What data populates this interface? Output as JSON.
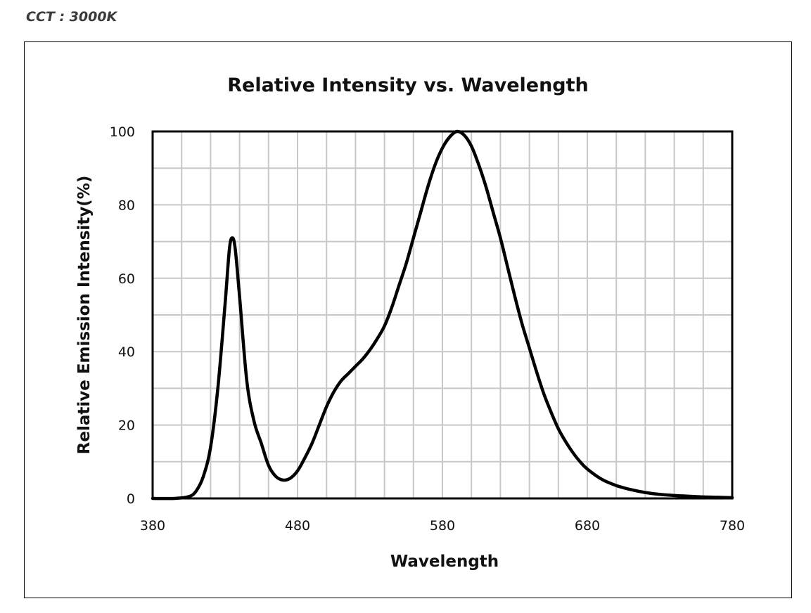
{
  "header": {
    "cct_label": "CCT : 3000K"
  },
  "chart_data": {
    "type": "line",
    "title": "Relative Intensity vs. Wavelength",
    "xlabel": "Wavelength",
    "ylabel": "Relative Emission Intensity(%)",
    "xlim": [
      380,
      780
    ],
    "ylim": [
      0,
      100
    ],
    "xticks": [
      380,
      480,
      580,
      680,
      780
    ],
    "yticks": [
      0,
      20,
      40,
      60,
      80,
      100
    ],
    "grid": true,
    "legend": "none",
    "series": [
      {
        "color": "#000000",
        "points": [
          [
            380,
            0
          ],
          [
            395,
            0
          ],
          [
            405,
            0.5
          ],
          [
            410,
            2
          ],
          [
            415,
            6
          ],
          [
            420,
            14
          ],
          [
            425,
            30
          ],
          [
            430,
            53
          ],
          [
            433,
            68
          ],
          [
            435,
            71
          ],
          [
            437,
            68
          ],
          [
            440,
            55
          ],
          [
            445,
            32
          ],
          [
            450,
            21
          ],
          [
            455,
            15
          ],
          [
            460,
            9
          ],
          [
            465,
            6
          ],
          [
            470,
            5
          ],
          [
            475,
            5.5
          ],
          [
            480,
            7.5
          ],
          [
            485,
            11
          ],
          [
            490,
            15
          ],
          [
            495,
            20
          ],
          [
            500,
            25
          ],
          [
            505,
            29
          ],
          [
            510,
            32
          ],
          [
            515,
            34
          ],
          [
            520,
            36
          ],
          [
            525,
            38
          ],
          [
            530,
            40.5
          ],
          [
            535,
            43.5
          ],
          [
            540,
            47
          ],
          [
            545,
            52
          ],
          [
            550,
            58
          ],
          [
            555,
            64
          ],
          [
            560,
            71
          ],
          [
            565,
            78
          ],
          [
            570,
            85
          ],
          [
            575,
            91
          ],
          [
            580,
            95.5
          ],
          [
            585,
            98.5
          ],
          [
            590,
            100
          ],
          [
            595,
            99
          ],
          [
            600,
            96
          ],
          [
            605,
            91
          ],
          [
            610,
            85
          ],
          [
            615,
            78
          ],
          [
            620,
            71
          ],
          [
            625,
            63
          ],
          [
            630,
            55
          ],
          [
            635,
            47.5
          ],
          [
            640,
            41
          ],
          [
            645,
            34.5
          ],
          [
            650,
            28.5
          ],
          [
            655,
            23.5
          ],
          [
            660,
            19
          ],
          [
            665,
            15.5
          ],
          [
            670,
            12.5
          ],
          [
            675,
            10
          ],
          [
            680,
            8
          ],
          [
            690,
            5.2
          ],
          [
            700,
            3.5
          ],
          [
            710,
            2.4
          ],
          [
            720,
            1.6
          ],
          [
            730,
            1.1
          ],
          [
            740,
            0.8
          ],
          [
            750,
            0.6
          ],
          [
            760,
            0.4
          ],
          [
            770,
            0.3
          ],
          [
            780,
            0.2
          ]
        ]
      }
    ]
  }
}
